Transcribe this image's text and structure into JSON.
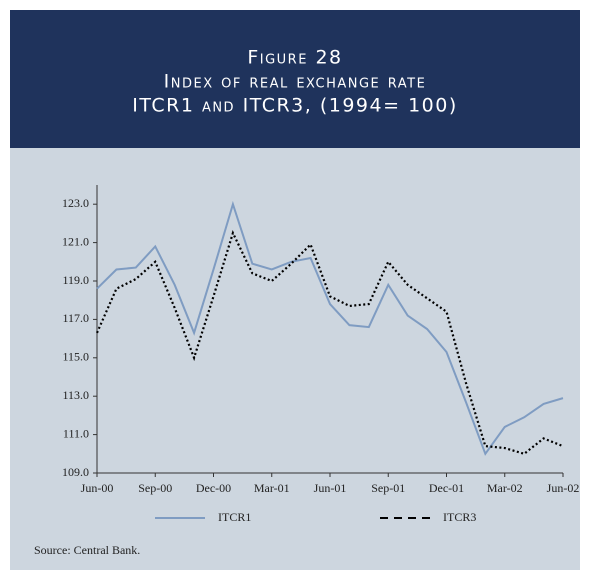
{
  "chart_data": {
    "type": "line",
    "title": [
      "Figure 28",
      "Index of real exchange rate",
      "ITCR1 and ITCR3, (1994= 100)"
    ],
    "categories": [
      "Jun-00",
      null,
      null,
      "Sep-00",
      null,
      null,
      "Dec-00",
      null,
      null,
      "Mar-01",
      null,
      null,
      "Jun-01",
      null,
      null,
      "Sep-01",
      null,
      null,
      "Dec-01",
      null,
      null,
      "Mar-02",
      null,
      null,
      "Jun-02"
    ],
    "series": [
      {
        "name": "ITCR1",
        "color": "#7f9cc2",
        "dash": "solid",
        "values": [
          118.6,
          119.6,
          119.7,
          120.8,
          118.8,
          116.3,
          119.6,
          123.0,
          119.9,
          119.6,
          120.0,
          120.2,
          117.8,
          116.7,
          116.6,
          118.8,
          117.2,
          116.5,
          115.3,
          112.7,
          110.0,
          111.4,
          111.9,
          112.6,
          112.9
        ]
      },
      {
        "name": "ITCR3",
        "color": "#000000",
        "dash": "dotted",
        "values": [
          116.3,
          118.6,
          119.1,
          120.0,
          117.6,
          115.0,
          118.2,
          121.5,
          119.4,
          119.0,
          119.9,
          120.9,
          118.2,
          117.7,
          117.8,
          120.0,
          118.8,
          118.1,
          117.4,
          113.7,
          110.4,
          110.3,
          110.0,
          110.8,
          110.4
        ]
      }
    ],
    "ylim": [
      109,
      124
    ],
    "yticks": [
      {
        "value": 109,
        "label": "109.0"
      },
      {
        "value": 111,
        "label": "111.0"
      },
      {
        "value": 113,
        "label": "113.0"
      },
      {
        "value": 115,
        "label": "115.0"
      },
      {
        "value": 117,
        "label": "117.0"
      },
      {
        "value": 119,
        "label": "119.0"
      },
      {
        "value": 121,
        "label": "121.0"
      },
      {
        "value": 123,
        "label": "123.0"
      }
    ],
    "grid": false,
    "source": "Source: Central Bank."
  }
}
